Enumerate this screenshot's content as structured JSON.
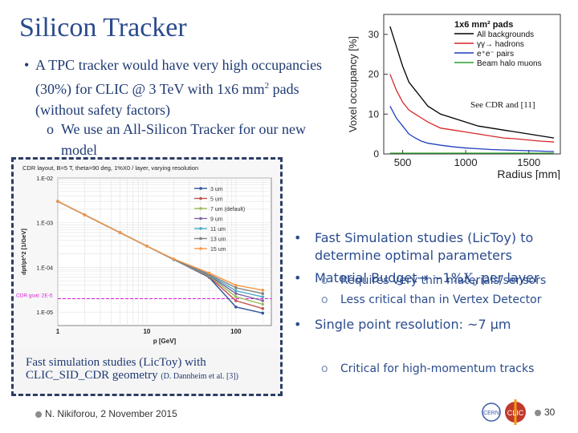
{
  "slide": {
    "title": "Silicon Tracker",
    "bullet1_mark": "•",
    "bullet1_pre": "A TPC tracker would have very high occupancies (30%) for CLIC @ 3 TeV with 1x6 mm",
    "bullet1_sup": "2",
    "bullet1_post": " pads (without safety factors)",
    "sub1_mark": "o",
    "sub1": "We use an All-Silicon Tracker for our new model",
    "see_cdr": "See CDR and [11]",
    "caption_main": "Fast simulation studies (LicToy) with CLIC_SID_CDR geometry",
    "caption_ref": "(D. Dannheim et al. [3])",
    "right_bullet_mark": "•",
    "right_sub_mark": "o",
    "right_b1": "Fast Simulation studies (LicToy) to determine optimal parameters",
    "right_b2_pre": "Material Budget→ ~1%",
    "right_b2_x": "X",
    "right_b2_sub": "0",
    "right_b2_post": " per layer",
    "right_s1": "Requires very thin materials/sensors",
    "right_s2": "Less critical than in Vertex Detector",
    "right_b3": "Single point resolution: ~7 μm",
    "right_s3": "Critical for high-momentum tracks",
    "footer": "N. Nikiforou, 2 November 2015",
    "page": "30"
  },
  "chart_data": [
    {
      "type": "line",
      "title": "1x6 mm² pads",
      "xlabel": "Radius [mm]",
      "ylabel": "Voxel occupancy [%]",
      "xlim": [
        350,
        1750
      ],
      "ylim": [
        0,
        35
      ],
      "xticks": [
        "500",
        "1000",
        "1500"
      ],
      "yticks": [
        "0",
        "10",
        "20",
        "30"
      ],
      "legend_position": "top-right",
      "series": [
        {
          "name": "All backgrounds",
          "color": "#000000",
          "x": [
            400,
            450,
            500,
            550,
            600,
            650,
            700,
            800,
            900,
            1000,
            1100,
            1200,
            1300,
            1400,
            1500,
            1600,
            1700
          ],
          "y": [
            32,
            27,
            22,
            18,
            16,
            14,
            12,
            10,
            9,
            8,
            7,
            6.5,
            6,
            5.5,
            5,
            4.5,
            4
          ]
        },
        {
          "name": "γγ→ hadrons",
          "color": "#d62728",
          "x": [
            400,
            450,
            500,
            550,
            600,
            650,
            700,
            800,
            900,
            1000,
            1100,
            1200,
            1300,
            1400,
            1500,
            1600,
            1700
          ],
          "y": [
            20,
            16,
            13,
            11,
            10,
            9,
            8,
            6.5,
            6,
            5.5,
            5,
            4.5,
            4,
            3.8,
            3.5,
            3.2,
            3
          ]
        },
        {
          "name": "e⁺e⁻ pairs",
          "color": "#1f3fbf",
          "x": [
            400,
            450,
            500,
            550,
            600,
            650,
            700,
            800,
            900,
            1000,
            1100,
            1200,
            1300,
            1400,
            1500,
            1600,
            1700
          ],
          "y": [
            12,
            9,
            7,
            5,
            4,
            3.2,
            2.7,
            2.2,
            1.8,
            1.5,
            1.3,
            1.1,
            1,
            0.9,
            0.8,
            0.7,
            0.6
          ]
        },
        {
          "name": "Beam halo muons",
          "color": "#2ca02c",
          "x": [
            400,
            1700
          ],
          "y": [
            0.2,
            0.2
          ]
        }
      ]
    },
    {
      "type": "line",
      "title": "CDR layout, B=5 T, theta=90 deg, 1%X0 / layer, varying resolution",
      "xlabel": "p [GeV]",
      "ylabel": "dpt/pt^2 [1/GeV]",
      "xscale": "log",
      "yscale": "log",
      "xlim": [
        1,
        250
      ],
      "ylim": [
        5e-06,
        0.01
      ],
      "xticks": [
        "1",
        "10",
        "100"
      ],
      "yticks": [
        "1.E-02",
        "1.E-03",
        "1.E-04",
        "1.E-05"
      ],
      "legend_position": "top-right",
      "annotation": "CDR goal: 2E-5",
      "goal_value": 2e-05,
      "series": [
        {
          "name": "3 um",
          "color": "#2f5597",
          "x": [
            1,
            2,
            5,
            10,
            20,
            50,
            100,
            200
          ],
          "y": [
            0.003,
            0.0015,
            0.0006,
            0.0003,
            0.00015,
            6e-05,
            1.3e-05,
            9.5e-06
          ]
        },
        {
          "name": "5 um",
          "color": "#c0504d",
          "x": [
            1,
            2,
            5,
            10,
            20,
            50,
            100,
            200
          ],
          "y": [
            0.003,
            0.0015,
            0.0006,
            0.0003,
            0.00015,
            6.2e-05,
            1.8e-05,
            1.2e-05
          ]
        },
        {
          "name": "7 um (default)",
          "color": "#9bbb59",
          "x": [
            1,
            2,
            5,
            10,
            20,
            50,
            100,
            200
          ],
          "y": [
            0.003,
            0.0015,
            0.0006,
            0.0003,
            0.00015,
            6.4e-05,
            2.2e-05,
            1.5e-05
          ]
        },
        {
          "name": "9 um",
          "color": "#8064a2",
          "x": [
            1,
            2,
            5,
            10,
            20,
            50,
            100,
            200
          ],
          "y": [
            0.003,
            0.0015,
            0.0006,
            0.0003,
            0.00015,
            6.6e-05,
            2.6e-05,
            1.8e-05
          ]
        },
        {
          "name": "11 um",
          "color": "#4bacc6",
          "x": [
            1,
            2,
            5,
            10,
            20,
            50,
            100,
            200
          ],
          "y": [
            0.003,
            0.0015,
            0.0006,
            0.0003,
            0.00015,
            6.8e-05,
            3e-05,
            2.2e-05
          ]
        },
        {
          "name": "13 um",
          "color": "#7f7f7f",
          "x": [
            1,
            2,
            5,
            10,
            20,
            50,
            100,
            200
          ],
          "y": [
            0.003,
            0.0015,
            0.0006,
            0.0003,
            0.000152,
            7e-05,
            3.5e-05,
            2.6e-05
          ]
        },
        {
          "name": "15 um",
          "color": "#f79646",
          "x": [
            1,
            2,
            5,
            10,
            20,
            50,
            100,
            200
          ],
          "y": [
            0.003,
            0.0015,
            0.0006,
            0.0003,
            0.000155,
            7.5e-05,
            4e-05,
            3.1e-05
          ]
        }
      ]
    }
  ]
}
